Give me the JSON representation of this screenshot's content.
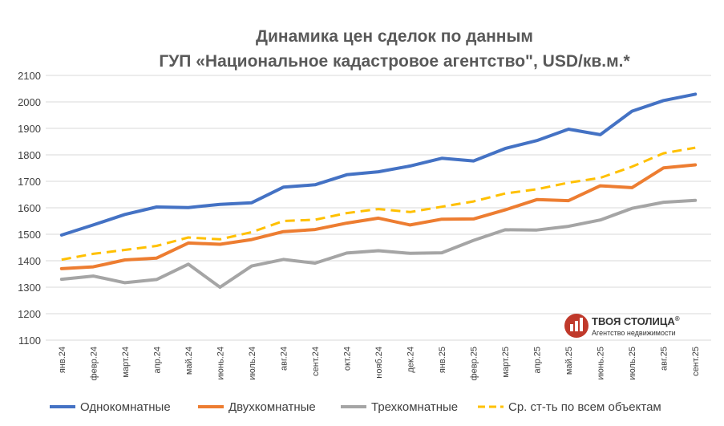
{
  "chart_data": {
    "type": "line",
    "title_line1": "Динамика цен сделок по данным",
    "title_line2": "ГУП «Национальное кадастровое агентство\", USD/кв.м.*",
    "categories": [
      "янв.24",
      "февр.24",
      "март.24",
      "апр.24",
      "май.24",
      "июнь.24",
      "июль.24",
      "авг.24",
      "сент.24",
      "окт.24",
      "нояб.24",
      "дек.24",
      "янв.25",
      "февр.25",
      "март.25",
      "апр.25",
      "май.25",
      "июнь.25",
      "июль.25",
      "авг.25",
      "сент.25"
    ],
    "ylim": [
      1100,
      2100
    ],
    "yticks": [
      1100,
      1200,
      1300,
      1400,
      1500,
      1600,
      1700,
      1800,
      1900,
      2000,
      2100
    ],
    "grid": true,
    "legend_position": "bottom",
    "series": [
      {
        "name": "Однокомнатные",
        "color": "#4472c4",
        "dash": false,
        "values": [
          1497,
          1535,
          1575,
          1603,
          1601,
          1613,
          1619,
          1678,
          1687,
          1725,
          1736,
          1758,
          1787,
          1777,
          1824,
          1854,
          1897,
          1876,
          1965,
          2005,
          2029
        ]
      },
      {
        "name": "Двухкомнатные",
        "color": "#ed7d31",
        "dash": false,
        "values": [
          1370,
          1377,
          1403,
          1410,
          1467,
          1462,
          1480,
          1510,
          1518,
          1542,
          1561,
          1535,
          1557,
          1558,
          1592,
          1631,
          1627,
          1683,
          1676,
          1751,
          1762
        ]
      },
      {
        "name": "Трехкомнатные",
        "color": "#a5a5a5",
        "dash": false,
        "values": [
          1330,
          1342,
          1317,
          1329,
          1387,
          1300,
          1380,
          1405,
          1391,
          1429,
          1438,
          1428,
          1430,
          1477,
          1517,
          1516,
          1530,
          1554,
          1598,
          1621,
          1628
        ]
      },
      {
        "name": "Ср. ст-ть по всем объектам",
        "color": "#ffc000",
        "dash": true,
        "values": [
          1404,
          1426,
          1441,
          1456,
          1488,
          1481,
          1508,
          1550,
          1555,
          1580,
          1595,
          1584,
          1604,
          1624,
          1654,
          1670,
          1695,
          1713,
          1755,
          1806,
          1827
        ]
      }
    ]
  },
  "logo": {
    "name": "ТВОЯ СТОЛИЦА",
    "registered": "®",
    "subtitle": "Агентство недвижимости",
    "color": "#c0392b"
  }
}
